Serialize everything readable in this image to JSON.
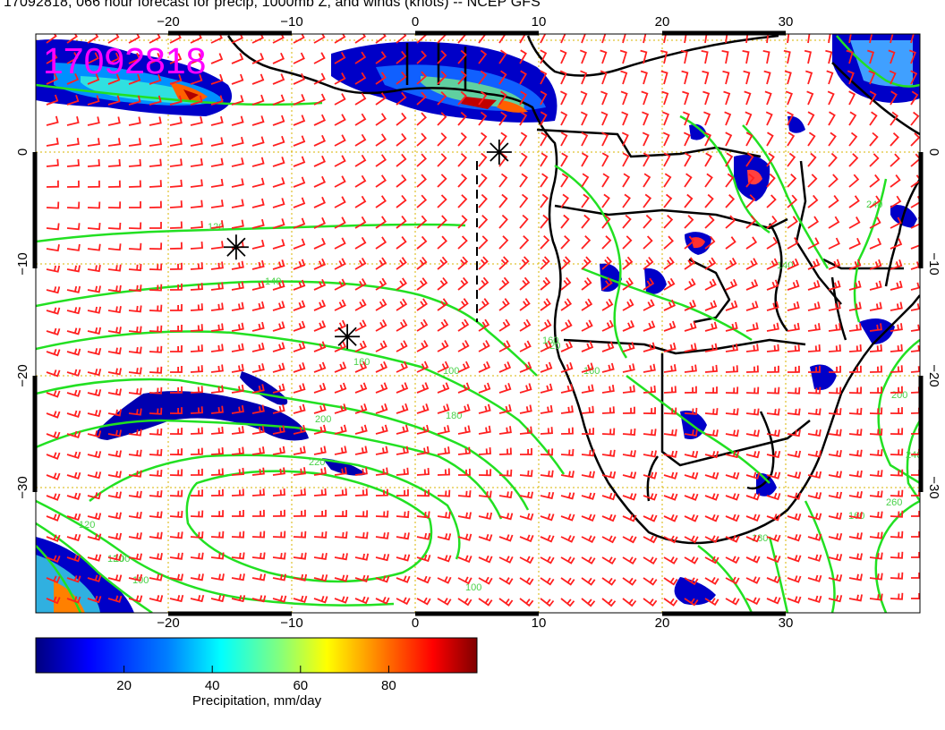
{
  "title": "17092818, 066 hour forecast for precip, 1000mb Z, and winds (knots) -- NCEP GFS",
  "stamp": "17092818",
  "stamp_color": "#ff00ff",
  "colors": {
    "contour": "#22e022",
    "barb": "#ff2020",
    "grid": "#d8b400",
    "land": "#000000"
  },
  "axes": {
    "lon_ticks": [
      "−20",
      "−10",
      "0",
      "10",
      "20",
      "30"
    ],
    "lat_ticks": [
      "0",
      "−10",
      "−20",
      "−30"
    ]
  },
  "contour_labels": [
    "120",
    "140",
    "160",
    "160",
    "180",
    "200",
    "220",
    "240",
    "100",
    "120",
    "140",
    "120",
    "100",
    "160",
    "200",
    "240",
    "260",
    "160",
    "180",
    "100",
    "120",
    "100"
  ],
  "colorbar": {
    "tick_labels": [
      "20",
      "40",
      "60",
      "80"
    ],
    "tick_values": [
      20,
      40,
      60,
      80
    ],
    "range": [
      0,
      100
    ],
    "label": "Precipitation, mm/day",
    "colors": [
      "#00007f",
      "#0000ff",
      "#0080ff",
      "#00ffff",
      "#80ff80",
      "#ffff00",
      "#ff8000",
      "#ff0000",
      "#7f0000"
    ]
  },
  "markers": [
    {
      "lon": -14.5,
      "lat": -8.5
    },
    {
      "lon": -5.5,
      "lat": -16.5
    },
    {
      "lon": 6.8,
      "lat": 0.0
    }
  ]
}
